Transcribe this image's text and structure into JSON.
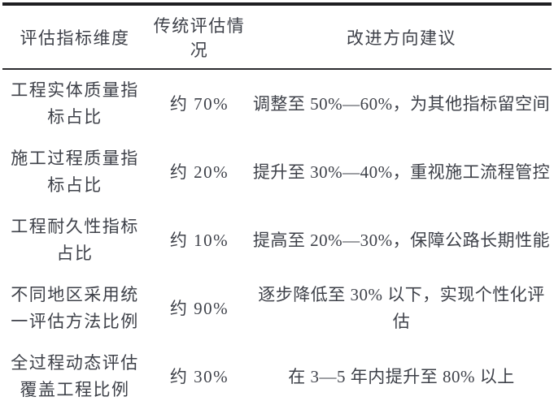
{
  "table": {
    "columns": [
      {
        "label": "评估指标维度"
      },
      {
        "label": "传统评估情况"
      },
      {
        "label": "改进方向建议"
      }
    ],
    "rows": [
      {
        "dimension": "工程实体质量指\n标占比",
        "traditional": "约 70%",
        "suggestion": "调整至 50%—60%，为其他指标留空间"
      },
      {
        "dimension": "施工过程质量指\n标占比",
        "traditional": "约 20%",
        "suggestion": "提升至 30%—40%，重视施工流程管控"
      },
      {
        "dimension": "工程耐久性指标\n占比",
        "traditional": "约 10%",
        "suggestion": "提高至 20%—30%，保障公路长期性能"
      },
      {
        "dimension": "不同地区采用统\n一评估方法比例",
        "traditional": "约 90%",
        "suggestion": "逐步降低至 30% 以下，实现个性化评估"
      },
      {
        "dimension": "全过程动态评估\n覆盖工程比例",
        "traditional": "约 30%",
        "suggestion": "在 3—5 年内提升至 80% 以上"
      }
    ],
    "colors": {
      "text": "#3e4149",
      "rule_heavy": "#1e1e21",
      "rule_light": "#2b2b2f",
      "background": "#ffffff"
    }
  }
}
